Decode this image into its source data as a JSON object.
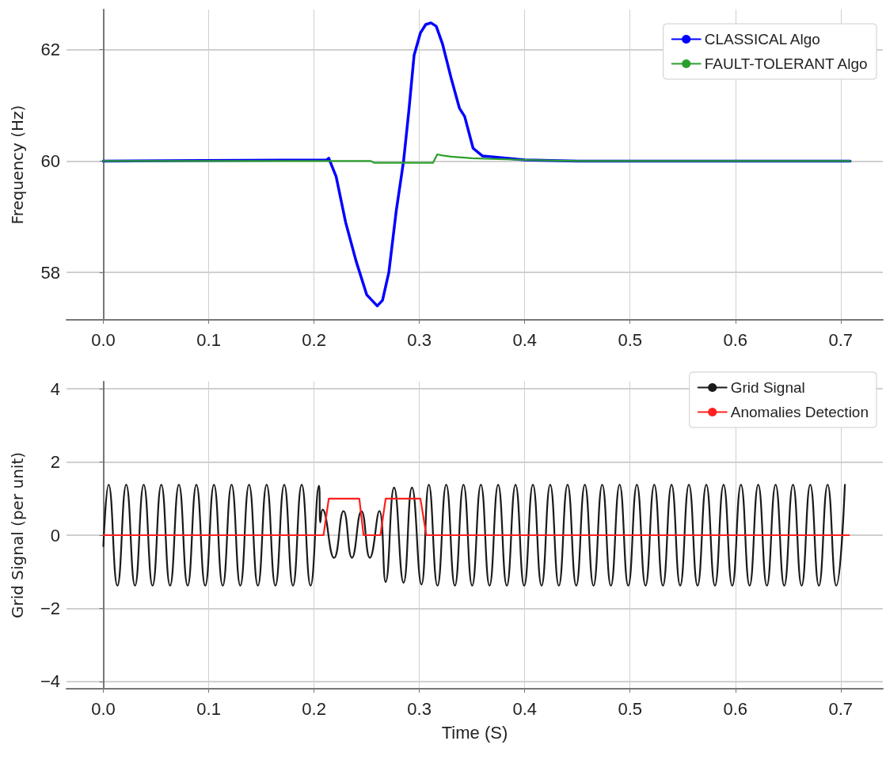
{
  "chart_data": [
    {
      "type": "line",
      "ylabel": "Frequency (Hz)",
      "xlim": [
        -0.035,
        0.74
      ],
      "ylim": [
        57.15,
        62.72
      ],
      "xticks": [
        {
          "value": 0,
          "label": "0.0"
        },
        0.1,
        0.2,
        0.3,
        0.4,
        0.5,
        0.6,
        0.7
      ],
      "yticks": [
        58,
        60,
        62
      ],
      "grid": true,
      "legend": "top right",
      "marker": "none",
      "line_style": "solid",
      "series": [
        {
          "name": "CLASSICAL Algo",
          "color": "#0000ff",
          "x": [
            0,
            0.212,
            0.214,
            0.221,
            0.23,
            0.24,
            0.25,
            0.26,
            0.265,
            0.271,
            0.278,
            0.285,
            0.29,
            0.295,
            0.301,
            0.306,
            0.311,
            0.316,
            0.322,
            0.33,
            0.338,
            0.343,
            0.351,
            0.36,
            0.4,
            0.45,
            0.709
          ],
          "values": [
            60,
            60.02,
            60.05,
            59.72,
            58.9,
            58.2,
            57.6,
            57.4,
            57.5,
            58.0,
            59.1,
            60,
            60.9,
            61.9,
            62.3,
            62.45,
            62.48,
            62.42,
            62.1,
            61.5,
            60.95,
            60.8,
            60.23,
            60.09,
            60.02,
            60.0,
            60.0
          ]
        },
        {
          "name": "FAULT-TOLERANT Algo",
          "color": "#2ca02c",
          "x": [
            0,
            0.212,
            0.254,
            0.257,
            0.313,
            0.317,
            0.322,
            0.33,
            0.35,
            0.4,
            0.45,
            0.709
          ],
          "values": [
            60,
            60,
            60,
            59.97,
            59.97,
            60.12,
            60.1,
            60.08,
            60.05,
            60.02,
            60.0,
            60.0
          ]
        }
      ]
    },
    {
      "type": "line",
      "xlabel": "Time (S)",
      "ylabel": "Grid Signal (per unit)",
      "xlim": [
        -0.035,
        0.74
      ],
      "ylim": [
        -4.2,
        4.2
      ],
      "xticks": [
        {
          "value": 0,
          "label": "0.0"
        },
        0.1,
        0.2,
        0.3,
        0.4,
        0.5,
        0.6,
        0.7
      ],
      "yticks": [
        -4,
        -2,
        0,
        2,
        4
      ],
      "grid": true,
      "legend": "top right",
      "marker": "none",
      "line_style": "solid",
      "series": [
        {
          "name": "Grid Signal",
          "color": "#1a1a1a",
          "x": [
            0,
            0.005,
            0.0133,
            0.0217,
            0.03,
            0.0383,
            0.0467,
            0.055,
            0.0633,
            0.0717,
            0.08,
            0.0883,
            0.0967,
            0.105,
            0.1133,
            0.1217,
            0.13,
            0.1383,
            0.1467,
            0.155,
            0.1633,
            0.1717,
            0.18,
            0.1883,
            0.1967,
            0.2047,
            0.206,
            0.208,
            0.219,
            0.228,
            0.236,
            0.245,
            0.253,
            0.262,
            0.268,
            0.276,
            0.285,
            0.293,
            0.302,
            0.309,
            0.3172,
            0.3255,
            0.3337,
            0.3419,
            0.3501,
            0.3584,
            0.3666,
            0.3748,
            0.383,
            0.3913,
            0.3995,
            0.4078,
            0.416,
            0.4242,
            0.4324,
            0.4407,
            0.4489,
            0.4571,
            0.4653,
            0.4736,
            0.4818,
            0.4901,
            0.4983,
            0.5065,
            0.5147,
            0.523,
            0.5312,
            0.5394,
            0.5476,
            0.5559,
            0.5641,
            0.5724,
            0.5806,
            0.5888,
            0.597,
            0.6053,
            0.6135,
            0.6217,
            0.6299,
            0.6382,
            0.6464,
            0.6547,
            0.6629,
            0.6711,
            0.6793,
            0.6876,
            0.6958,
            0.704
          ],
          "values": [
            -0.3,
            1.38,
            -1.38,
            1.38,
            -1.38,
            1.38,
            -1.38,
            1.38,
            -1.38,
            1.38,
            -1.38,
            1.38,
            -1.38,
            1.38,
            -1.38,
            1.38,
            -1.38,
            1.38,
            -1.38,
            1.38,
            -1.38,
            1.38,
            -1.38,
            1.38,
            -1.38,
            1.35,
            0.35,
            0.7,
            -0.62,
            0.66,
            -0.62,
            0.66,
            -0.62,
            0.66,
            -1.28,
            1.3,
            -1.3,
            1.3,
            -1.35,
            1.38,
            -1.38,
            1.38,
            -1.38,
            1.38,
            -1.38,
            1.38,
            -1.38,
            1.38,
            -1.38,
            1.38,
            -1.38,
            1.38,
            -1.38,
            1.38,
            -1.38,
            1.38,
            -1.38,
            1.38,
            -1.38,
            1.38,
            -1.38,
            1.38,
            -1.38,
            1.38,
            -1.38,
            1.38,
            -1.38,
            1.38,
            -1.38,
            1.38,
            -1.38,
            1.38,
            -1.38,
            1.38,
            -1.38,
            1.38,
            -1.38,
            1.38,
            -1.38,
            1.38,
            -1.38,
            1.38,
            -1.38,
            1.38,
            -1.38,
            1.38,
            -1.38,
            1.38
          ]
        },
        {
          "name": "Anomalies Detection",
          "color": "#ff2020",
          "x": [
            0,
            0.209,
            0.214,
            0.243,
            0.247,
            0.263,
            0.268,
            0.301,
            0.3066,
            0.708
          ],
          "values": [
            0,
            0,
            1,
            1,
            0,
            0,
            1,
            1,
            0,
            0
          ]
        }
      ]
    }
  ]
}
